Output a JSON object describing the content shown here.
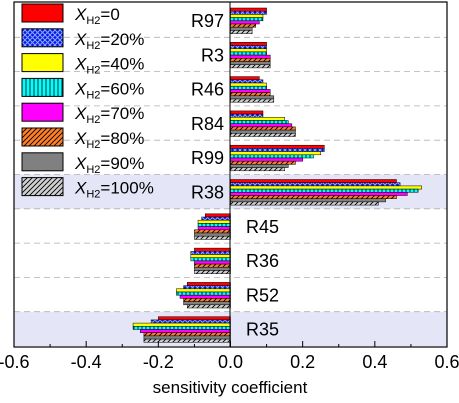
{
  "chart_data": {
    "type": "bar",
    "orientation": "horizontal",
    "xlabel": "sensitivity coefficient",
    "xlim": [
      -0.6,
      0.6
    ],
    "xticks": [
      "-0.6",
      "-0.4",
      "-0.2",
      "0.0",
      "0.2",
      "0.4",
      "0.6"
    ],
    "categories": [
      "R97",
      "R3",
      "R46",
      "R84",
      "R99",
      "R38",
      "R45",
      "R36",
      "R52",
      "R35"
    ],
    "highlighted_categories": [
      "R38",
      "R35"
    ],
    "legend_placement": "top-left",
    "series": [
      {
        "name": "X_H2=0",
        "x": "X",
        "sub": "H2",
        "suffix": "=0",
        "color": "#ff0000",
        "pattern": "solid",
        "values": [
          0.1,
          0.1,
          0.08,
          0.09,
          0.26,
          0.46,
          -0.07,
          -0.1,
          -0.12,
          -0.2
        ]
      },
      {
        "name": "X_H2=20%",
        "x": "X",
        "sub": "H2",
        "suffix": "=20%",
        "color": "#1010e8",
        "pattern": "crosshatch",
        "values": [
          0.1,
          0.1,
          0.09,
          0.09,
          0.26,
          0.47,
          -0.08,
          -0.11,
          -0.13,
          -0.22
        ]
      },
      {
        "name": "X_H2=40%",
        "x": "X",
        "sub": "H2",
        "suffix": "=40%",
        "color": "#ffff00",
        "pattern": "solid",
        "values": [
          0.09,
          0.1,
          0.1,
          0.15,
          0.25,
          0.53,
          -0.09,
          -0.11,
          -0.15,
          -0.27
        ]
      },
      {
        "name": "X_H2=60%",
        "x": "X",
        "sub": "H2",
        "suffix": "=60%",
        "color": "#00ffff",
        "pattern": "vertical",
        "values": [
          0.09,
          0.1,
          0.1,
          0.16,
          0.23,
          0.52,
          -0.09,
          -0.11,
          -0.15,
          -0.27
        ]
      },
      {
        "name": "X_H2=70%",
        "x": "X",
        "sub": "H2",
        "suffix": "=70%",
        "color": "#ff00ff",
        "pattern": "solid",
        "values": [
          0.08,
          0.11,
          0.11,
          0.17,
          0.2,
          0.49,
          -0.09,
          -0.1,
          -0.14,
          -0.25
        ]
      },
      {
        "name": "X_H2=80%",
        "x": "X",
        "sub": "H2",
        "suffix": "=80%",
        "color": "#ff7f27",
        "pattern": "diagonal",
        "values": [
          0.07,
          0.11,
          0.11,
          0.18,
          0.18,
          0.46,
          -0.1,
          -0.1,
          -0.13,
          -0.24
        ]
      },
      {
        "name": "X_H2=90%",
        "x": "X",
        "sub": "H2",
        "suffix": "=90%",
        "color": "#808080",
        "pattern": "solid",
        "values": [
          0.06,
          0.11,
          0.12,
          0.18,
          0.16,
          0.43,
          -0.1,
          -0.1,
          -0.13,
          -0.24
        ]
      },
      {
        "name": "X_H2=100%",
        "x": "X",
        "sub": "H2",
        "suffix": "=100%",
        "color": "#d0d0d0",
        "pattern": "diagonal",
        "values": [
          0.06,
          0.11,
          0.12,
          0.18,
          0.15,
          0.41,
          -0.1,
          -0.1,
          -0.12,
          -0.24
        ]
      }
    ]
  }
}
